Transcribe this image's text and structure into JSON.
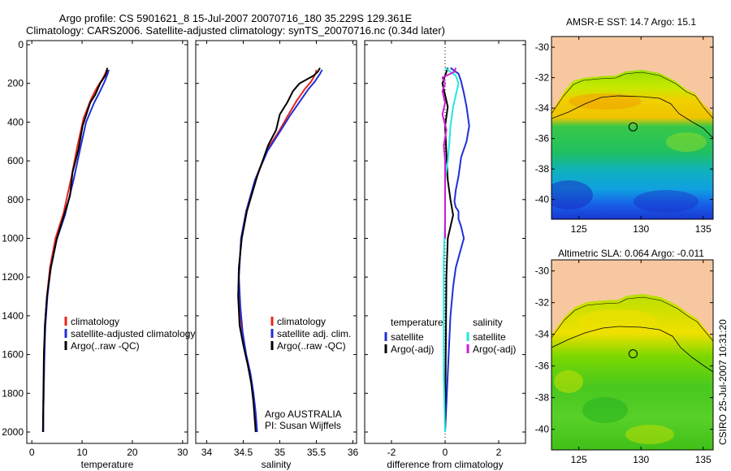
{
  "title": {
    "line1": "Argo profile: CS 5901621_8 15-Jul-2007 20070716_180 35.229S 129.361E",
    "line2": "Climatology: CARS2006. Satellite-adjusted climatology: synTS_20070716.nc (0.34d later)"
  },
  "side_label": "CSIRO 25-Jul-2007 10:31:20",
  "colors": {
    "climatology": "#e8251b",
    "satellite": "#1f2fd6",
    "argo": "#000000",
    "sat_diff": "#22e6e6",
    "argo_adj": "#d21bd2",
    "land": "#f7c8a0"
  },
  "chart_data": [
    {
      "type": "line",
      "id": "temperature",
      "xlabel": "temperature",
      "ylabel": "",
      "xlim": [
        -1,
        31
      ],
      "ylim": [
        2050,
        0
      ],
      "xticks": [
        0,
        10,
        20,
        30
      ],
      "yticks": [
        0,
        200,
        400,
        600,
        800,
        1000,
        1200,
        1400,
        1600,
        1800,
        2000
      ],
      "legend_position": "lower-center",
      "legend": [
        "climatology",
        "satellite-adjusted climatology",
        "Argo(..raw -QC)"
      ],
      "series": [
        {
          "name": "climatology",
          "color_key": "climatology",
          "x": [
            14.9,
            14.6,
            14.0,
            13.0,
            11.8,
            10.3,
            9.1,
            7.9,
            6.3,
            4.7,
            3.6,
            3.0,
            2.6,
            2.5,
            2.4,
            2.3,
            2.3
          ],
          "y": [
            130,
            150,
            180,
            220,
            280,
            380,
            520,
            680,
            870,
            1000,
            1150,
            1300,
            1450,
            1600,
            1750,
            1900,
            1950
          ]
        },
        {
          "name": "satellite-adjusted climatology",
          "color_key": "satellite",
          "x": [
            15.3,
            15.1,
            14.5,
            13.6,
            12.4,
            10.8,
            9.6,
            8.3,
            6.6,
            4.9,
            3.7,
            3.1,
            2.7,
            2.5,
            2.4,
            2.3,
            2.3
          ],
          "y": [
            130,
            150,
            190,
            240,
            300,
            400,
            540,
            700,
            880,
            1010,
            1160,
            1300,
            1450,
            1600,
            1750,
            1900,
            2000
          ]
        },
        {
          "name": "Argo(..raw -QC)",
          "color_key": "argo",
          "x": [
            15.0,
            14.9,
            14.6,
            13.6,
            12.6,
            11.6,
            10.1,
            9.3,
            8.1,
            7.6,
            6.4,
            5.0,
            3.8,
            3.0,
            2.6,
            2.4,
            2.3,
            2.2
          ],
          "y": [
            120,
            140,
            160,
            200,
            260,
            300,
            420,
            540,
            660,
            780,
            880,
            1000,
            1150,
            1300,
            1450,
            1600,
            1800,
            2000
          ]
        }
      ]
    },
    {
      "type": "line",
      "id": "salinity",
      "xlabel": "salinity",
      "ylabel": "",
      "xlim": [
        33.85,
        36.05
      ],
      "ylim": [
        2050,
        0
      ],
      "xticks": [
        34,
        34.5,
        35,
        35.5,
        36
      ],
      "xticklabels": [
        "34",
        "34.5",
        "35",
        "35.5",
        "36"
      ],
      "legend_position": "lower-right",
      "legend": [
        "climatology",
        "satellite adj. clim.",
        "Argo(..raw -QC)"
      ],
      "annotation": [
        "Argo AUSTRALIA",
        "PI: Susan Wijffels"
      ],
      "series": [
        {
          "name": "climatology",
          "color_key": "climatology",
          "x": [
            35.5,
            35.49,
            35.43,
            35.34,
            35.23,
            35.12,
            35.0,
            34.83,
            34.66,
            34.54,
            34.47,
            34.44,
            34.45,
            34.48,
            34.53,
            34.59,
            34.63,
            34.66,
            34.68
          ],
          "y": [
            130,
            150,
            190,
            230,
            290,
            360,
            440,
            540,
            700,
            860,
            1000,
            1200,
            1350,
            1480,
            1600,
            1700,
            1800,
            1900,
            1950
          ]
        },
        {
          "name": "satellite adj. clim.",
          "color_key": "satellite",
          "x": [
            35.58,
            35.55,
            35.48,
            35.39,
            35.28,
            35.15,
            35.0,
            34.83,
            34.66,
            34.54,
            34.47,
            34.44,
            34.46,
            34.49,
            34.54,
            34.6,
            34.64,
            34.67,
            34.69
          ],
          "y": [
            130,
            150,
            190,
            230,
            290,
            360,
            450,
            550,
            700,
            860,
            1000,
            1200,
            1350,
            1480,
            1600,
            1700,
            1800,
            1900,
            2000
          ]
        },
        {
          "name": "Argo(..raw -QC)",
          "color_key": "argo",
          "x": [
            35.55,
            35.52,
            35.46,
            35.27,
            35.18,
            35.1,
            35.0,
            34.95,
            34.84,
            34.69,
            34.55,
            34.48,
            34.44,
            34.43,
            34.45,
            34.5,
            34.56,
            34.61,
            34.64,
            34.67
          ],
          "y": [
            120,
            140,
            160,
            200,
            240,
            300,
            360,
            440,
            520,
            680,
            860,
            1000,
            1150,
            1300,
            1450,
            1550,
            1650,
            1750,
            1850,
            2000
          ]
        }
      ]
    },
    {
      "type": "line",
      "id": "difference",
      "xlabel": "difference from climatology",
      "ylabel": "",
      "xlim": [
        -3,
        3
      ],
      "ylim": [
        2050,
        0
      ],
      "xticks": [
        -2,
        0,
        2
      ],
      "legend_position": "lower-center",
      "legend_groups": [
        {
          "header": "temperature",
          "items": [
            "satellite",
            "Argo(-adj)"
          ]
        },
        {
          "header": "salinity",
          "items": [
            "satellite",
            "Argo(-adj)"
          ]
        }
      ],
      "series": [
        {
          "name": "temperature satellite",
          "color_key": "satellite",
          "x": [
            0.2,
            0.5,
            0.6,
            0.7,
            0.8,
            0.9,
            0.8,
            0.6,
            0.5,
            0.4,
            0.35,
            0.4,
            0.5,
            0.5,
            0.6,
            0.7,
            0.6,
            0.5,
            0.4,
            0.3,
            0.2,
            0.1,
            0.0
          ],
          "y": [
            120,
            150,
            190,
            250,
            320,
            420,
            500,
            580,
            680,
            750,
            810,
            840,
            860,
            900,
            940,
            1000,
            1050,
            1100,
            1150,
            1250,
            1400,
            1700,
            2000
          ]
        },
        {
          "name": "temperature Argo(-adj)",
          "color_key": "argo",
          "x": [
            0.1,
            0.0,
            -0.1,
            0.0,
            0.1,
            0.0,
            0.05,
            0.1,
            0.2,
            0.3,
            0.2,
            0.1,
            0.05,
            0.0
          ],
          "y": [
            120,
            160,
            200,
            260,
            320,
            420,
            560,
            700,
            800,
            880,
            940,
            1000,
            1200,
            2000
          ]
        },
        {
          "name": "salinity satellite",
          "color_key": "sat_diff",
          "x": [
            0.0,
            0.4,
            0.5,
            0.4,
            0.3,
            0.2,
            0.15,
            0.1,
            0.0,
            0.0,
            -0.05,
            -0.05,
            -0.05,
            0.0
          ],
          "y": [
            120,
            160,
            200,
            260,
            320,
            420,
            520,
            600,
            700,
            900,
            1100,
            1400,
            1700,
            2000
          ]
        },
        {
          "name": "salinity Argo(-adj)",
          "color_key": "argo_adj",
          "x": [
            0.4,
            0.35,
            -0.1,
            0.0,
            -0.1,
            0.0,
            -0.1,
            0.05,
            -0.05,
            0.0,
            0.0,
            0.0
          ],
          "y": [
            120,
            140,
            170,
            200,
            240,
            300,
            360,
            440,
            520,
            600,
            800,
            1000
          ]
        }
      ]
    },
    {
      "type": "heatmap",
      "id": "sst-map",
      "title": "AMSR-E SST: 14.7 Argo: 15.1",
      "xlim": [
        122.8,
        135.8
      ],
      "ylim": [
        -41.3,
        -29.3
      ],
      "xticks": [
        125,
        130,
        135
      ],
      "yticks": [
        -30,
        -32,
        -34,
        -36,
        -38,
        -40
      ],
      "marker": {
        "lon": 129.36,
        "lat": -35.23
      }
    },
    {
      "type": "heatmap",
      "id": "sla-map",
      "title": "Altimetric SLA: 0.064 Argo: -0.011",
      "xlim": [
        122.8,
        135.8
      ],
      "ylim": [
        -41.3,
        -29.3
      ],
      "xticks": [
        125,
        130,
        135
      ],
      "yticks": [
        -30,
        -32,
        -34,
        -36,
        -38,
        -40
      ],
      "marker": {
        "lon": 129.36,
        "lat": -35.23
      }
    }
  ]
}
